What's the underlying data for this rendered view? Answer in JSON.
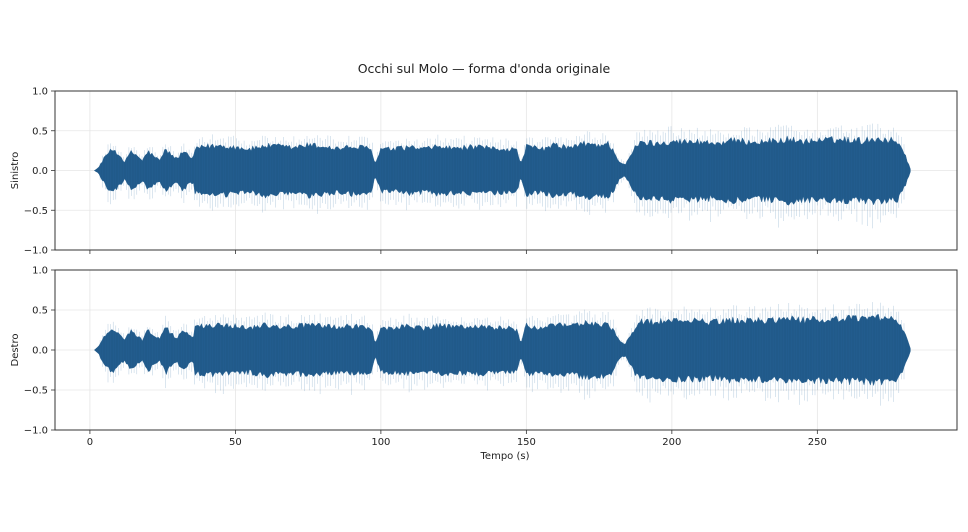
{
  "title": "Occhi sul Molo — forma d'onda originale",
  "colors": {
    "wave": "#215a8a",
    "wave_light": "#2f6ea3",
    "grid": "#e6e6e6",
    "axis": "#333333"
  },
  "chart_data": {
    "type": "area",
    "title": "Occhi sul Molo — forma d'onda originale",
    "xlabel": "Tempo (s)",
    "xlim": [
      -12,
      298
    ],
    "ylim": [
      -1.0,
      1.0
    ],
    "grid": true,
    "xticks": [
      0,
      50,
      100,
      150,
      200,
      250
    ],
    "yticks": [
      -1.0,
      -0.5,
      0.0,
      0.5,
      1.0
    ],
    "ytick_labels": [
      "−1.0",
      "−0.5",
      "0.0",
      "0.5",
      "1.0"
    ],
    "xtick_labels": [
      "0",
      "50",
      "100",
      "150",
      "200",
      "250"
    ],
    "duration_s": [
      1.5,
      282
    ],
    "series": [
      {
        "name": "Sinistro",
        "envelope": {
          "t": [
            1.5,
            3,
            4,
            6,
            8,
            10,
            12,
            14,
            16,
            18,
            20,
            22,
            24,
            26,
            28,
            30,
            32,
            34,
            35.5,
            36,
            40,
            45,
            50,
            55,
            60,
            65,
            70,
            75,
            80,
            85,
            90,
            95,
            97,
            98,
            100,
            105,
            110,
            115,
            120,
            125,
            130,
            135,
            140,
            145,
            147,
            148,
            150,
            155,
            160,
            165,
            170,
            175,
            178,
            180,
            182,
            184,
            186,
            188,
            190,
            195,
            200,
            205,
            210,
            215,
            220,
            225,
            230,
            235,
            240,
            245,
            250,
            255,
            260,
            265,
            270,
            275,
            278,
            280,
            282
          ],
          "peak": [
            0.0,
            0.04,
            0.12,
            0.24,
            0.3,
            0.22,
            0.12,
            0.26,
            0.22,
            0.14,
            0.27,
            0.2,
            0.14,
            0.3,
            0.22,
            0.16,
            0.28,
            0.2,
            0.16,
            0.3,
            0.34,
            0.35,
            0.33,
            0.3,
            0.35,
            0.34,
            0.32,
            0.36,
            0.34,
            0.31,
            0.33,
            0.32,
            0.28,
            0.08,
            0.3,
            0.3,
            0.33,
            0.3,
            0.34,
            0.31,
            0.33,
            0.32,
            0.31,
            0.3,
            0.28,
            0.08,
            0.34,
            0.3,
            0.36,
            0.32,
            0.38,
            0.36,
            0.38,
            0.28,
            0.12,
            0.08,
            0.22,
            0.36,
            0.4,
            0.38,
            0.42,
            0.4,
            0.41,
            0.38,
            0.42,
            0.41,
            0.4,
            0.42,
            0.44,
            0.41,
            0.42,
            0.43,
            0.44,
            0.42,
            0.45,
            0.43,
            0.4,
            0.24,
            0.02
          ]
        }
      },
      {
        "name": "Destro",
        "envelope": {
          "t": [
            1.5,
            3,
            4,
            6,
            8,
            10,
            12,
            14,
            16,
            18,
            20,
            22,
            24,
            26,
            28,
            30,
            32,
            34,
            35.5,
            36,
            40,
            45,
            50,
            55,
            60,
            65,
            70,
            75,
            80,
            85,
            90,
            95,
            97,
            98,
            100,
            105,
            110,
            115,
            120,
            125,
            130,
            135,
            140,
            145,
            147,
            148,
            150,
            155,
            160,
            165,
            170,
            175,
            178,
            180,
            182,
            184,
            186,
            188,
            190,
            195,
            200,
            205,
            210,
            215,
            220,
            225,
            230,
            235,
            240,
            245,
            250,
            255,
            260,
            265,
            270,
            275,
            278,
            280,
            282
          ],
          "peak": [
            0.0,
            0.05,
            0.14,
            0.25,
            0.3,
            0.22,
            0.14,
            0.28,
            0.2,
            0.14,
            0.29,
            0.2,
            0.15,
            0.32,
            0.22,
            0.17,
            0.3,
            0.2,
            0.16,
            0.32,
            0.35,
            0.34,
            0.34,
            0.31,
            0.36,
            0.33,
            0.33,
            0.35,
            0.34,
            0.31,
            0.34,
            0.32,
            0.28,
            0.08,
            0.31,
            0.31,
            0.34,
            0.3,
            0.34,
            0.32,
            0.33,
            0.33,
            0.31,
            0.31,
            0.28,
            0.08,
            0.34,
            0.31,
            0.35,
            0.33,
            0.38,
            0.36,
            0.37,
            0.28,
            0.12,
            0.08,
            0.22,
            0.37,
            0.4,
            0.39,
            0.42,
            0.41,
            0.4,
            0.39,
            0.42,
            0.41,
            0.41,
            0.42,
            0.44,
            0.42,
            0.43,
            0.43,
            0.44,
            0.43,
            0.46,
            0.43,
            0.4,
            0.24,
            0.02
          ]
        }
      }
    ]
  }
}
